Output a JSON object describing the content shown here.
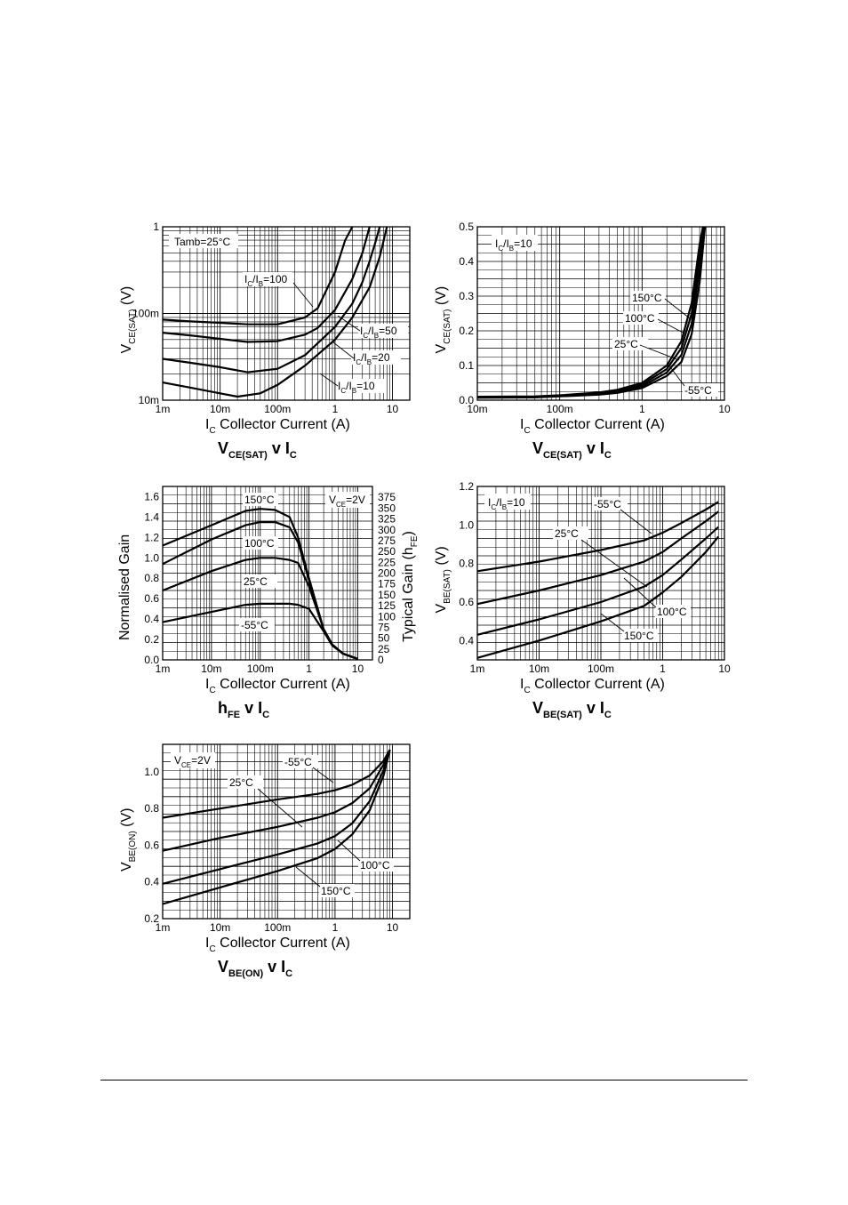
{
  "chart_data": [
    {
      "type": "line",
      "scale": "loglog",
      "xlim": [
        0.001,
        20
      ],
      "ylim": [
        0.01,
        1
      ],
      "xticks": [
        {
          "v": 0.001,
          "t": "1m"
        },
        {
          "v": 0.01,
          "t": "10m"
        },
        {
          "v": 0.1,
          "t": "100m"
        },
        {
          "v": 1,
          "t": "1"
        },
        {
          "v": 10,
          "t": "10"
        }
      ],
      "yticks": [
        {
          "v": 0.01,
          "t": "10m"
        },
        {
          "v": 0.1,
          "t": "100m"
        },
        {
          "v": 1,
          "t": "1"
        }
      ],
      "xlabel": "I",
      "xlabel_sub": "C",
      "xlabel_text": "Collector Current (A)",
      "ylabel": "V",
      "ylabel_sub": "CE(SAT)",
      "ylabel_unit": "(V)",
      "caption": "V",
      "caption_sub": "CE(SAT)",
      "caption_mid": " v I",
      "caption_sub2": "C",
      "annotation": "Tamb=25°C",
      "series": [
        {
          "label_main": "I",
          "label_sub1": "C",
          "label_slash": "/I",
          "label_sub2": "B",
          "label_val": "=100",
          "x": [
            0.001,
            0.003,
            0.01,
            0.03,
            0.1,
            0.3,
            0.5,
            1,
            1.5,
            2
          ],
          "y": [
            0.085,
            0.081,
            0.078,
            0.075,
            0.075,
            0.09,
            0.115,
            0.3,
            0.7,
            1.0
          ]
        },
        {
          "label_main": "I",
          "label_sub1": "C",
          "label_slash": "/I",
          "label_sub2": "B",
          "label_val": "=50",
          "x": [
            0.001,
            0.003,
            0.01,
            0.03,
            0.1,
            0.3,
            0.5,
            1,
            2,
            3,
            4
          ],
          "y": [
            0.06,
            0.056,
            0.051,
            0.047,
            0.048,
            0.057,
            0.068,
            0.11,
            0.25,
            0.5,
            1.0
          ]
        },
        {
          "label_main": "I",
          "label_sub1": "C",
          "label_slash": "/I",
          "label_sub2": "B",
          "label_val": "=20",
          "x": [
            0.001,
            0.003,
            0.01,
            0.03,
            0.1,
            0.3,
            1,
            2,
            3,
            4,
            5,
            6
          ],
          "y": [
            0.03,
            0.027,
            0.024,
            0.021,
            0.023,
            0.033,
            0.07,
            0.13,
            0.23,
            0.4,
            0.65,
            1.0
          ]
        },
        {
          "label_main": "I",
          "label_sub1": "C",
          "label_slash": "/I",
          "label_sub2": "B",
          "label_val": "=10",
          "x": [
            0.001,
            0.003,
            0.01,
            0.02,
            0.05,
            0.1,
            0.3,
            1,
            2,
            4,
            6,
            8
          ],
          "y": [
            0.016,
            0.014,
            0.012,
            0.011,
            0.012,
            0.015,
            0.025,
            0.05,
            0.09,
            0.2,
            0.45,
            1.0
          ]
        }
      ]
    },
    {
      "type": "line",
      "scale": "logx",
      "xlim": [
        0.01,
        10
      ],
      "ylim": [
        0,
        0.5
      ],
      "xticks": [
        {
          "v": 0.01,
          "t": "10m"
        },
        {
          "v": 0.1,
          "t": "100m"
        },
        {
          "v": 1,
          "t": "1"
        },
        {
          "v": 10,
          "t": "10"
        }
      ],
      "yticks": [
        {
          "v": 0,
          "t": "0.0"
        },
        {
          "v": 0.1,
          "t": "0.1"
        },
        {
          "v": 0.2,
          "t": "0.2"
        },
        {
          "v": 0.3,
          "t": "0.3"
        },
        {
          "v": 0.4,
          "t": "0.4"
        },
        {
          "v": 0.5,
          "t": "0.5"
        }
      ],
      "xlabel": "I",
      "xlabel_sub": "C",
      "xlabel_text": "Collector Current (A)",
      "ylabel": "V",
      "ylabel_sub": "CE(SAT)",
      "ylabel_unit": "(V)",
      "caption": "V",
      "caption_sub": "CE(SAT)",
      "caption_mid": " v I",
      "caption_sub2": "C",
      "annotation_main": "I",
      "annotation_sub1": "C",
      "annotation_slash": "/I",
      "annotation_sub2": "B",
      "annotation_val": "=10",
      "series": [
        {
          "name": "150°C",
          "x": [
            0.01,
            0.05,
            0.1,
            0.3,
            0.5,
            1,
            2,
            3,
            4,
            5,
            5.5
          ],
          "y": [
            0.01,
            0.011,
            0.014,
            0.022,
            0.03,
            0.05,
            0.1,
            0.17,
            0.28,
            0.45,
            0.5
          ]
        },
        {
          "name": "100°C",
          "x": [
            0.01,
            0.05,
            0.1,
            0.3,
            0.5,
            1,
            2,
            3,
            4,
            5,
            5.6
          ],
          "y": [
            0.009,
            0.01,
            0.013,
            0.02,
            0.027,
            0.045,
            0.09,
            0.15,
            0.25,
            0.42,
            0.5
          ]
        },
        {
          "name": "25°C",
          "x": [
            0.01,
            0.05,
            0.1,
            0.3,
            0.5,
            1,
            2,
            3,
            4,
            5,
            5.7
          ],
          "y": [
            0.008,
            0.009,
            0.012,
            0.018,
            0.024,
            0.04,
            0.08,
            0.13,
            0.22,
            0.38,
            0.5
          ]
        },
        {
          "name": "-55°C",
          "x": [
            0.01,
            0.05,
            0.1,
            0.3,
            0.5,
            1,
            2,
            3,
            4,
            5,
            5.8
          ],
          "y": [
            0.007,
            0.008,
            0.011,
            0.016,
            0.021,
            0.035,
            0.07,
            0.11,
            0.19,
            0.34,
            0.5
          ]
        }
      ]
    },
    {
      "type": "line",
      "scale": "logx",
      "xlim": [
        0.001,
        20
      ],
      "ylim": [
        0,
        1.7
      ],
      "xticks": [
        {
          "v": 0.001,
          "t": "1m"
        },
        {
          "v": 0.01,
          "t": "10m"
        },
        {
          "v": 0.1,
          "t": "100m"
        },
        {
          "v": 1,
          "t": "1"
        },
        {
          "v": 10,
          "t": "10"
        }
      ],
      "yticks": [
        {
          "v": 0,
          "t": "0.0"
        },
        {
          "v": 0.2,
          "t": "0.2"
        },
        {
          "v": 0.4,
          "t": "0.4"
        },
        {
          "v": 0.6,
          "t": "0.6"
        },
        {
          "v": 0.8,
          "t": "0.8"
        },
        {
          "v": 1.0,
          "t": "1.0"
        },
        {
          "v": 1.2,
          "t": "1.2"
        },
        {
          "v": 1.4,
          "t": "1.4"
        },
        {
          "v": 1.6,
          "t": "1.6"
        }
      ],
      "y2ticks": [
        "0",
        "25",
        "50",
        "75",
        "100",
        "125",
        "150",
        "175",
        "200",
        "225",
        "250",
        "275",
        "300",
        "325",
        "350",
        "375"
      ],
      "ylabel_left": "Normalised Gain",
      "ylabel_right": "Typical Gain (h",
      "ylabel_right_sub": "FE",
      "ylabel_right_end": ")",
      "xlabel": "I",
      "xlabel_sub": "C",
      "xlabel_text": "Collector Current (A)",
      "caption": "h",
      "caption_sub": "FE",
      "caption_mid": " v I",
      "caption_sub2": "C",
      "annotation_main": "V",
      "annotation_sub": "CE",
      "annotation_val": "=2V",
      "series": [
        {
          "name": "150°C",
          "x": [
            0.001,
            0.01,
            0.05,
            0.1,
            0.2,
            0.4,
            0.6,
            1,
            2,
            3,
            5,
            10
          ],
          "y": [
            1.12,
            1.32,
            1.46,
            1.48,
            1.47,
            1.4,
            1.2,
            0.8,
            0.3,
            0.15,
            0.06,
            0.01
          ]
        },
        {
          "name": "100°C",
          "x": [
            0.001,
            0.01,
            0.05,
            0.1,
            0.2,
            0.4,
            0.6,
            1,
            2,
            3,
            5,
            10
          ],
          "y": [
            0.94,
            1.18,
            1.32,
            1.35,
            1.35,
            1.3,
            1.15,
            0.78,
            0.3,
            0.15,
            0.06,
            0.01
          ]
        },
        {
          "name": "25°C",
          "x": [
            0.001,
            0.01,
            0.05,
            0.1,
            0.2,
            0.4,
            0.6,
            1,
            2,
            3,
            5,
            10
          ],
          "y": [
            0.68,
            0.87,
            0.98,
            1.0,
            1.0,
            0.98,
            0.95,
            0.72,
            0.3,
            0.15,
            0.06,
            0.01
          ]
        },
        {
          "name": "-55°C",
          "x": [
            0.001,
            0.01,
            0.05,
            0.1,
            0.2,
            0.4,
            0.6,
            1,
            2,
            3,
            5,
            10
          ],
          "y": [
            0.37,
            0.47,
            0.54,
            0.55,
            0.55,
            0.55,
            0.54,
            0.5,
            0.28,
            0.14,
            0.06,
            0.01
          ]
        }
      ]
    },
    {
      "type": "line",
      "scale": "logx",
      "xlim": [
        0.001,
        10
      ],
      "ylim": [
        0.3,
        1.2
      ],
      "xticks": [
        {
          "v": 0.001,
          "t": "1m"
        },
        {
          "v": 0.01,
          "t": "10m"
        },
        {
          "v": 0.1,
          "t": "100m"
        },
        {
          "v": 1,
          "t": "1"
        },
        {
          "v": 10,
          "t": "10"
        }
      ],
      "yticks": [
        {
          "v": 0.4,
          "t": "0.4"
        },
        {
          "v": 0.6,
          "t": "0.6"
        },
        {
          "v": 0.8,
          "t": "0.8"
        },
        {
          "v": 1.0,
          "t": "1.0"
        },
        {
          "v": 1.2,
          "t": "1.2"
        }
      ],
      "xlabel": "I",
      "xlabel_sub": "C",
      "xlabel_text": "Collector Current (A)",
      "ylabel": "V",
      "ylabel_sub": "BE(SAT)",
      "ylabel_unit": "(V)",
      "caption": "V",
      "caption_sub": "BE(SAT)",
      "caption_mid": " v I",
      "caption_sub2": "C",
      "annotation_main": "I",
      "annotation_sub1": "C",
      "annotation_slash": "/I",
      "annotation_sub2": "B",
      "annotation_val": "=10",
      "series": [
        {
          "name": "-55°C",
          "x": [
            0.001,
            0.01,
            0.1,
            0.5,
            1,
            2,
            5,
            8
          ],
          "y": [
            0.76,
            0.81,
            0.87,
            0.92,
            0.96,
            1.01,
            1.08,
            1.12
          ]
        },
        {
          "name": "25°C",
          "x": [
            0.001,
            0.01,
            0.1,
            0.5,
            1,
            2,
            5,
            8
          ],
          "y": [
            0.59,
            0.66,
            0.74,
            0.81,
            0.86,
            0.93,
            1.02,
            1.07
          ]
        },
        {
          "name": "100°C",
          "x": [
            0.001,
            0.01,
            0.1,
            0.5,
            1,
            2,
            5,
            8
          ],
          "y": [
            0.43,
            0.51,
            0.6,
            0.68,
            0.74,
            0.82,
            0.93,
            0.99
          ]
        },
        {
          "name": "150°C",
          "x": [
            0.001,
            0.01,
            0.1,
            0.5,
            1,
            2,
            5,
            8
          ],
          "y": [
            0.31,
            0.4,
            0.5,
            0.58,
            0.65,
            0.73,
            0.86,
            0.94
          ]
        }
      ]
    },
    {
      "type": "line",
      "scale": "logx",
      "xlim": [
        0.001,
        20
      ],
      "ylim": [
        0.2,
        1.15
      ],
      "xticks": [
        {
          "v": 0.001,
          "t": "1m"
        },
        {
          "v": 0.01,
          "t": "10m"
        },
        {
          "v": 0.1,
          "t": "100m"
        },
        {
          "v": 1,
          "t": "1"
        },
        {
          "v": 10,
          "t": "10"
        }
      ],
      "yticks": [
        {
          "v": 0.2,
          "t": "0.2"
        },
        {
          "v": 0.4,
          "t": "0.4"
        },
        {
          "v": 0.6,
          "t": "0.6"
        },
        {
          "v": 0.8,
          "t": "0.8"
        },
        {
          "v": 1.0,
          "t": "1.0"
        }
      ],
      "xlabel": "I",
      "xlabel_sub": "C",
      "xlabel_text": "Collector Current (A)",
      "ylabel": "V",
      "ylabel_sub": "BE(ON)",
      "ylabel_unit": "(V)",
      "caption": "V",
      "caption_sub": "BE(ON)",
      "caption_mid": " v I",
      "caption_sub2": "C",
      "annotation_main": "V",
      "annotation_sub": "CE",
      "annotation_val": "=2V",
      "series": [
        {
          "name": "-55°C",
          "x": [
            0.001,
            0.01,
            0.1,
            0.5,
            1,
            2,
            4,
            7,
            9
          ],
          "y": [
            0.75,
            0.8,
            0.85,
            0.88,
            0.9,
            0.93,
            0.98,
            1.06,
            1.12
          ]
        },
        {
          "name": "25°C",
          "x": [
            0.001,
            0.01,
            0.1,
            0.5,
            1,
            2,
            4,
            7,
            9
          ],
          "y": [
            0.57,
            0.64,
            0.7,
            0.75,
            0.78,
            0.83,
            0.91,
            1.04,
            1.12
          ]
        },
        {
          "name": "100°C",
          "x": [
            0.001,
            0.01,
            0.1,
            0.5,
            1,
            2,
            4,
            7,
            9
          ],
          "y": [
            0.39,
            0.47,
            0.55,
            0.61,
            0.65,
            0.72,
            0.84,
            1.01,
            1.12
          ]
        },
        {
          "name": "150°C",
          "x": [
            0.001,
            0.01,
            0.1,
            0.5,
            1,
            2,
            4,
            7,
            9
          ],
          "y": [
            0.28,
            0.37,
            0.46,
            0.53,
            0.58,
            0.66,
            0.79,
            0.98,
            1.12
          ]
        }
      ]
    }
  ]
}
